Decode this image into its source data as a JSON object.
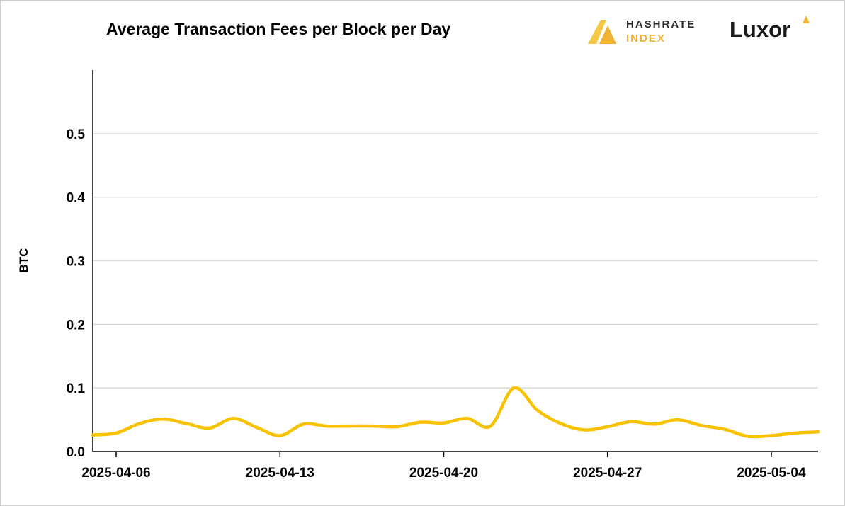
{
  "chart_data": {
    "type": "line",
    "title": "Average Transaction Fees per Block per Day",
    "xlabel": "",
    "ylabel": "BTC",
    "ylim": [
      0,
      0.6
    ],
    "yticks": [
      "0.0",
      "0.1",
      "0.2",
      "0.3",
      "0.4",
      "0.5"
    ],
    "ytick_values": [
      0,
      0.1,
      0.2,
      0.3,
      0.4,
      0.5
    ],
    "xlim": [
      "2025-04-05",
      "2025-05-06"
    ],
    "xticks": [
      "2025-04-06",
      "2025-04-13",
      "2025-04-20",
      "2025-04-27",
      "2025-05-04"
    ],
    "grid": "horizontal",
    "line_color": "#f8c200",
    "series": [
      {
        "x": [
          "2025-04-05",
          "2025-04-06",
          "2025-04-07",
          "2025-04-08",
          "2025-04-09",
          "2025-04-10",
          "2025-04-11",
          "2025-04-12",
          "2025-04-13",
          "2025-04-14",
          "2025-04-15",
          "2025-04-16",
          "2025-04-17",
          "2025-04-18",
          "2025-04-19",
          "2025-04-20",
          "2025-04-21",
          "2025-04-22",
          "2025-04-23",
          "2025-04-24",
          "2025-04-25",
          "2025-04-26",
          "2025-04-27",
          "2025-04-28",
          "2025-04-29",
          "2025-04-30",
          "2025-05-01",
          "2025-05-02",
          "2025-05-03",
          "2025-05-04",
          "2025-05-05",
          "2025-05-06"
        ],
        "values": [
          0.026,
          0.029,
          0.044,
          0.051,
          0.044,
          0.037,
          0.052,
          0.038,
          0.025,
          0.043,
          0.04,
          0.04,
          0.04,
          0.039,
          0.046,
          0.045,
          0.052,
          0.04,
          0.1,
          0.065,
          0.044,
          0.034,
          0.039,
          0.047,
          0.043,
          0.05,
          0.041,
          0.035,
          0.024,
          0.025,
          0.029,
          0.031
        ]
      }
    ]
  },
  "logos": {
    "hashrate_line1": "HASHRATE",
    "hashrate_line2": "INDEX",
    "luxor": "Luxor"
  },
  "colors": {
    "accent": "#f8c200",
    "logo_gold": "#f2b233",
    "grid": "#d9d9d9"
  }
}
